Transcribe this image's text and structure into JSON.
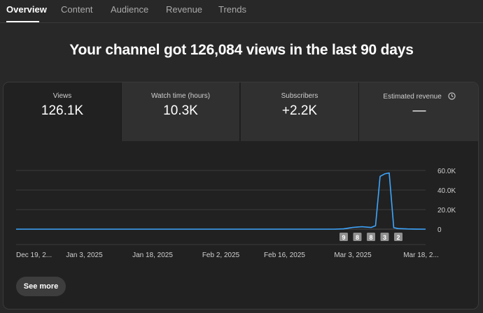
{
  "tabs": [
    {
      "label": "Overview",
      "active": true
    },
    {
      "label": "Content"
    },
    {
      "label": "Audience"
    },
    {
      "label": "Revenue"
    },
    {
      "label": "Trends"
    }
  ],
  "headline": "Your channel got 126,084 views in the last 90 days",
  "metrics": [
    {
      "label": "Views",
      "value": "126.1K"
    },
    {
      "label": "Watch time (hours)",
      "value": "10.3K"
    },
    {
      "label": "Subscribers",
      "value": "+2.2K"
    },
    {
      "label": "Estimated revenue",
      "value": "—",
      "icon": "clock-icon"
    }
  ],
  "chart_data": {
    "type": "line",
    "title": "",
    "xlabel": "",
    "ylabel": "",
    "ylim": [
      0,
      65000
    ],
    "y_ticks": [
      "60.0K",
      "40.0K",
      "20.0K",
      "0"
    ],
    "y_tick_values": [
      60000,
      40000,
      20000,
      0
    ],
    "x_range_days": [
      0,
      90
    ],
    "x_tick_labels": [
      "Dec 19, 2...",
      "Jan 3, 2025",
      "Jan 18, 2025",
      "Feb 2, 2025",
      "Feb 16, 2025",
      "Mar 3, 2025",
      "Mar 18, 2..."
    ],
    "x_tick_days": [
      0,
      15,
      30,
      45,
      59,
      74,
      89
    ],
    "series": [
      {
        "name": "Views",
        "color": "#3ea6ff",
        "x": [
          0,
          10,
          20,
          30,
          40,
          50,
          60,
          70,
          72,
          74,
          76,
          78,
          79,
          80,
          81,
          82,
          83,
          84,
          86,
          88,
          90
        ],
        "y": [
          0,
          0,
          0,
          0,
          0,
          0,
          0,
          0,
          300,
          1800,
          2500,
          1700,
          3500,
          54000,
          56500,
          57500,
          1500,
          600,
          200,
          100,
          0
        ]
      }
    ],
    "markers": [
      {
        "label": "9",
        "day": 72
      },
      {
        "label": "8",
        "day": 75
      },
      {
        "label": "8",
        "day": 78
      },
      {
        "label": "3",
        "day": 81
      },
      {
        "label": "2",
        "day": 84
      }
    ]
  },
  "see_more": "See more"
}
